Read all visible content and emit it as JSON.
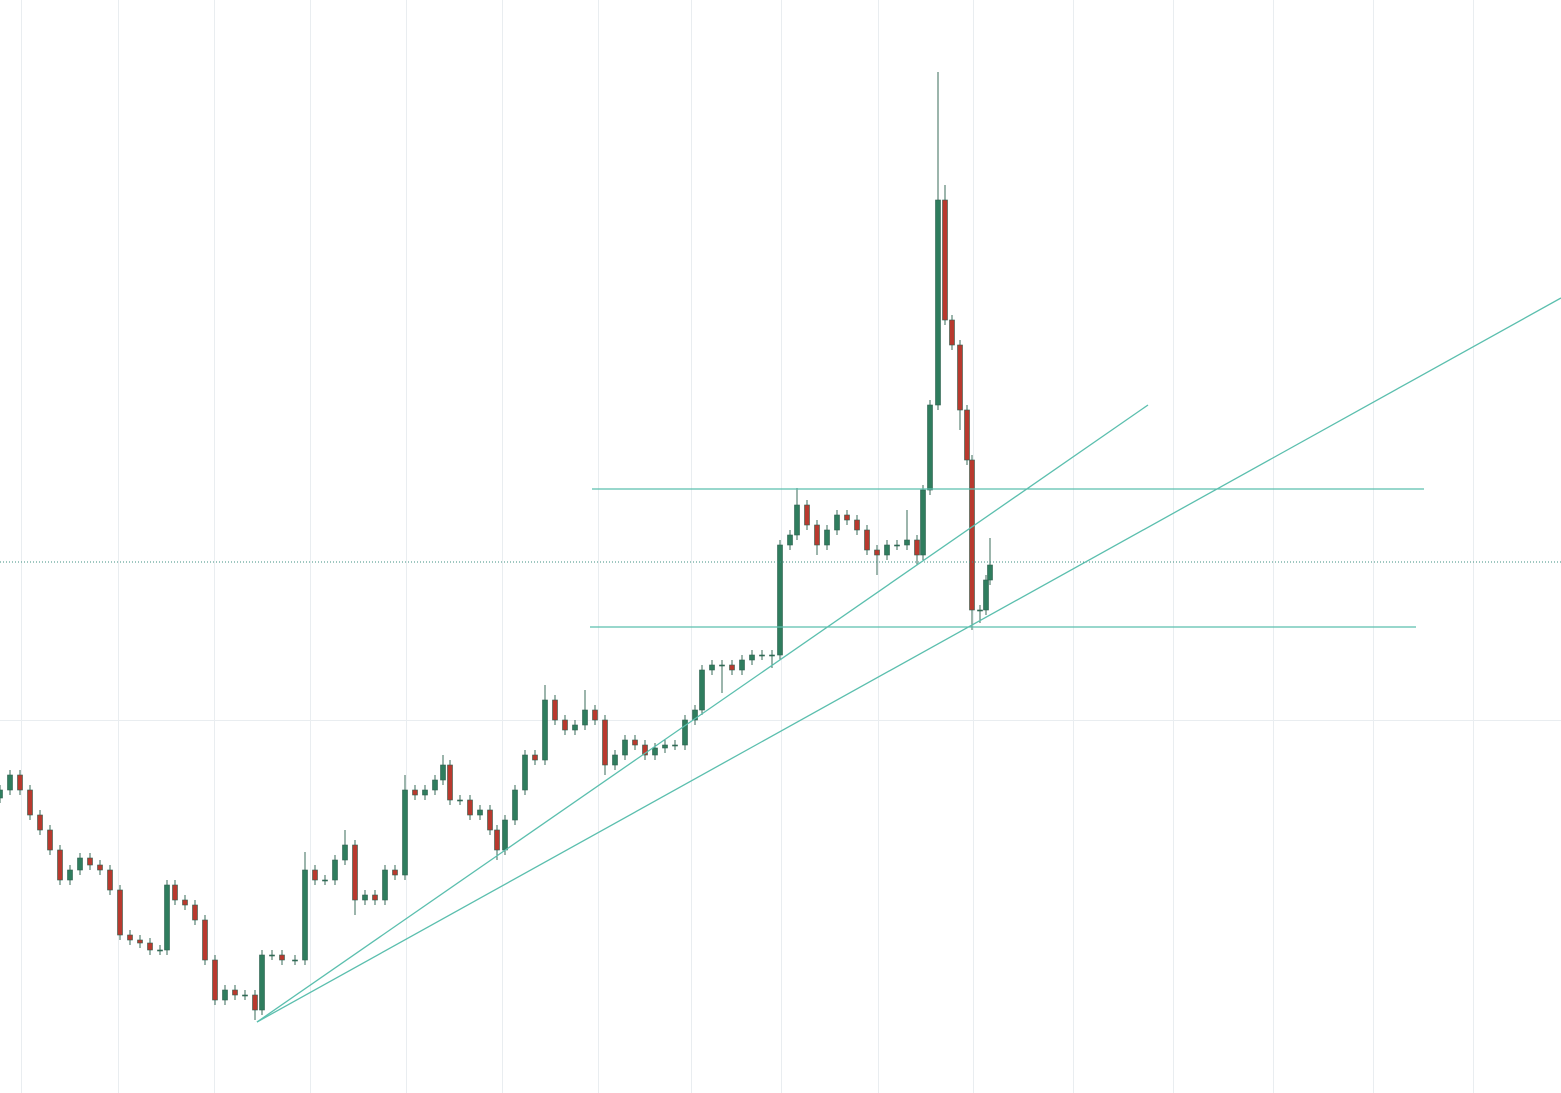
{
  "chart_data": {
    "type": "candlestick",
    "xlim": [
      0,
      1561
    ],
    "ylim": [
      0,
      1093
    ],
    "xticks": [
      21,
      118,
      214,
      310,
      406,
      502,
      598,
      691,
      781,
      878,
      973,
      1073,
      1173,
      1273,
      1373,
      1473
    ],
    "yticks": [
      373
    ],
    "grid": true,
    "up_color": "#2f7d5e",
    "down_color": "#b8392e",
    "line_color": "#5bbfae",
    "x": [
      0,
      10,
      20,
      30,
      40,
      50,
      60,
      70,
      80,
      90,
      100,
      110,
      120,
      130,
      140,
      150,
      160,
      167,
      175,
      185,
      195,
      205,
      215,
      225,
      235,
      245,
      255,
      262,
      272,
      282,
      295,
      305,
      315,
      325,
      335,
      345,
      355,
      365,
      375,
      385,
      395,
      405,
      415,
      425,
      435,
      443,
      450,
      460,
      470,
      480,
      490,
      497,
      505,
      515,
      525,
      535,
      545,
      555,
      565,
      575,
      585,
      595,
      605,
      615,
      625,
      635,
      645,
      655,
      665,
      675,
      685,
      695,
      702,
      712,
      722,
      732,
      742,
      752,
      762,
      772,
      780,
      790,
      797,
      807,
      817,
      827,
      837,
      847,
      857,
      867,
      877,
      887,
      897,
      907,
      917,
      923,
      930,
      938,
      945,
      952,
      960,
      967,
      972,
      980,
      986,
      990
    ],
    "open": [
      295,
      303,
      318,
      303,
      278,
      263,
      243,
      213,
      223,
      235,
      228,
      223,
      203,
      158,
      153,
      150,
      143,
      143,
      208,
      193,
      188,
      173,
      133,
      93,
      103,
      98,
      98,
      83,
      138,
      138,
      133,
      133,
      223,
      213,
      213,
      233,
      248,
      193,
      198,
      193,
      223,
      218,
      303,
      298,
      303,
      313,
      328,
      293,
      293,
      278,
      283,
      263,
      243,
      273,
      303,
      338,
      333,
      393,
      373,
      363,
      368,
      383,
      373,
      328,
      338,
      353,
      348,
      338,
      345,
      348,
      348,
      373,
      383,
      423,
      428,
      428,
      423,
      433,
      438,
      438,
      438,
      548,
      558,
      588,
      568,
      548,
      563,
      578,
      573,
      563,
      543,
      538,
      548,
      548,
      553,
      538,
      603,
      688,
      893,
      773,
      748,
      683,
      633,
      483,
      483,
      513
    ],
    "high": [
      308,
      323,
      323,
      308,
      283,
      268,
      248,
      228,
      240,
      240,
      233,
      228,
      208,
      163,
      158,
      155,
      148,
      213,
      213,
      198,
      193,
      178,
      138,
      108,
      108,
      103,
      103,
      143,
      143,
      143,
      138,
      241,
      228,
      218,
      238,
      263,
      253,
      203,
      203,
      228,
      228,
      318,
      308,
      308,
      318,
      338,
      333,
      298,
      298,
      288,
      288,
      268,
      278,
      308,
      343,
      343,
      408,
      398,
      378,
      373,
      403,
      388,
      378,
      343,
      358,
      358,
      353,
      350,
      353,
      353,
      378,
      388,
      428,
      433,
      433,
      433,
      438,
      443,
      443,
      443,
      553,
      563,
      605,
      593,
      573,
      568,
      583,
      583,
      578,
      568,
      548,
      553,
      553,
      583,
      558,
      608,
      693,
      1021,
      908,
      778,
      753,
      688,
      638,
      488,
      518,
      555
    ],
    "low": [
      290,
      298,
      298,
      273,
      258,
      238,
      208,
      208,
      218,
      223,
      218,
      198,
      153,
      148,
      145,
      138,
      138,
      138,
      188,
      183,
      168,
      128,
      88,
      88,
      93,
      93,
      73,
      78,
      133,
      128,
      128,
      128,
      208,
      208,
      208,
      228,
      178,
      188,
      188,
      188,
      213,
      213,
      293,
      293,
      298,
      308,
      288,
      288,
      273,
      273,
      258,
      233,
      238,
      268,
      298,
      328,
      328,
      368,
      358,
      358,
      363,
      368,
      318,
      323,
      333,
      343,
      333,
      333,
      340,
      343,
      343,
      368,
      378,
      418,
      400,
      418,
      418,
      428,
      433,
      425,
      433,
      543,
      553,
      563,
      538,
      543,
      558,
      568,
      558,
      538,
      518,
      533,
      543,
      543,
      528,
      533,
      598,
      683,
      768,
      743,
      663,
      628,
      463,
      470,
      478,
      508
    ],
    "close": [
      303,
      318,
      303,
      278,
      263,
      243,
      213,
      223,
      235,
      228,
      223,
      203,
      158,
      153,
      150,
      143,
      143,
      208,
      193,
      188,
      173,
      133,
      93,
      103,
      98,
      98,
      83,
      138,
      138,
      133,
      133,
      223,
      213,
      213,
      233,
      248,
      193,
      198,
      193,
      223,
      218,
      303,
      298,
      303,
      313,
      328,
      293,
      293,
      278,
      283,
      263,
      243,
      273,
      303,
      338,
      333,
      393,
      373,
      363,
      368,
      383,
      373,
      328,
      338,
      353,
      348,
      338,
      345,
      348,
      348,
      373,
      383,
      423,
      428,
      428,
      423,
      433,
      438,
      438,
      438,
      548,
      558,
      588,
      568,
      548,
      563,
      578,
      573,
      563,
      543,
      538,
      548,
      548,
      553,
      538,
      603,
      688,
      893,
      773,
      748,
      683,
      633,
      483,
      483,
      513,
      528
    ],
    "hlines": [
      {
        "value": 604,
        "x": [
          592,
          1424
        ]
      },
      {
        "value": 466,
        "x": [
          590,
          1416
        ]
      }
    ],
    "last_price": 531,
    "trendlines": [
      {
        "x": [
          257,
          1148
        ],
        "y": [
          71,
          688
        ]
      },
      {
        "x": [
          257,
          1561
        ],
        "y": [
          71,
          795
        ]
      }
    ]
  }
}
